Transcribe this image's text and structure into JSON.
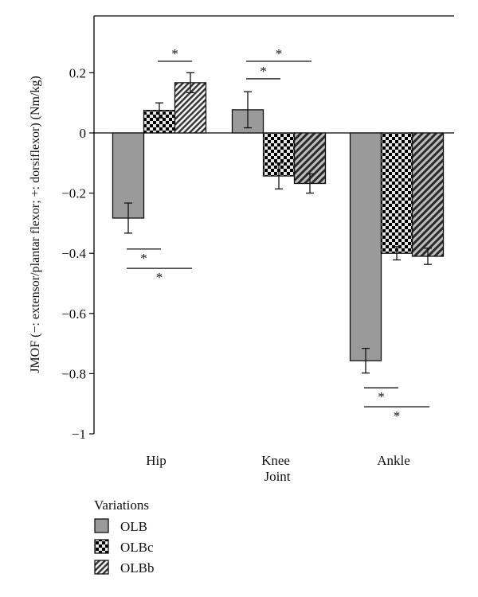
{
  "chart_data": {
    "type": "bar",
    "title": "",
    "xlabel": "Joint",
    "ylabel": "JMOF (−: extensor/plantar flexor; +: dorsiflexor) (Nm/kg)",
    "ylim": [
      -1,
      0.39
    ],
    "yticks": [
      0.2,
      0,
      -0.2,
      -0.4,
      -0.6,
      -0.8,
      -1
    ],
    "ytick_labels": [
      "0.2",
      "0",
      "−0.2",
      "−0.4",
      "−0.6",
      "−0.8",
      "−1"
    ],
    "categories": [
      "Hip",
      "Knee",
      "Ankle"
    ],
    "grid": false,
    "legend": {
      "title": "Variations",
      "placement": "bottom-left"
    },
    "series": [
      {
        "name": "OLB",
        "pattern": "solid-gray",
        "color": "#9a9a9a",
        "values": [
          -0.283,
          0.077,
          -0.757
        ],
        "errors": [
          0.05,
          0.06,
          0.041
        ]
      },
      {
        "name": "OLBc",
        "pattern": "checker",
        "color": "#000000",
        "values": [
          0.075,
          -0.143,
          -0.4
        ],
        "errors": [
          0.025,
          0.043,
          0.022
        ]
      },
      {
        "name": "OLBb",
        "pattern": "hatch",
        "color": "#555555",
        "values": [
          0.167,
          -0.168,
          -0.41
        ],
        "errors": [
          0.033,
          0.032,
          0.027
        ]
      }
    ],
    "significance": [
      {
        "category": "Hip",
        "from": 1,
        "to": 2,
        "y": 0.238,
        "label": "*",
        "side": "above"
      },
      {
        "category": "Hip",
        "from": 0,
        "to": 1,
        "y": -0.386,
        "label": "*",
        "side": "below"
      },
      {
        "category": "Hip",
        "from": 0,
        "to": 2,
        "y": -0.45,
        "label": "*",
        "side": "below"
      },
      {
        "category": "Knee",
        "from": 0,
        "to": 1,
        "y": 0.18,
        "label": "*",
        "side": "above"
      },
      {
        "category": "Knee",
        "from": 0,
        "to": 2,
        "y": 0.238,
        "label": "*",
        "side": "above"
      },
      {
        "category": "Ankle",
        "from": 0,
        "to": 1,
        "y": -0.847,
        "label": "*",
        "side": "below"
      },
      {
        "category": "Ankle",
        "from": 0,
        "to": 2,
        "y": -0.91,
        "label": "*",
        "side": "below"
      }
    ]
  }
}
